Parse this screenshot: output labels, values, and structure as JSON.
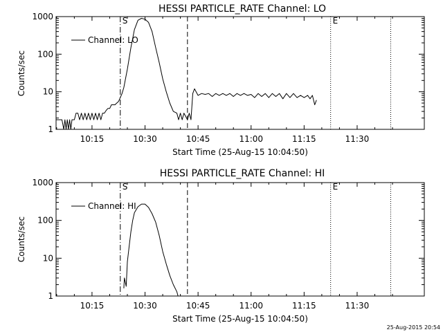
{
  "footer": {
    "timestamp": "25-Aug-2015 20:54"
  },
  "chart_data": [
    {
      "type": "line",
      "title": "HESSI PARTICLE_RATE Channel: LO",
      "xlabel": "Start Time (25-Aug-15 10:04:50)",
      "ylabel": "Counts/sec",
      "y_scale": "log",
      "ylim": [
        1,
        1000
      ],
      "xlim": [
        "10:04:50",
        "11:49:00"
      ],
      "x_ticks": [
        "10:15",
        "10:30",
        "10:45",
        "11:00",
        "11:15",
        "11:30"
      ],
      "y_ticks": [
        "1",
        "10",
        "100",
        "1000"
      ],
      "legend": {
        "position": "top-left",
        "entries": [
          "Channel: LO"
        ]
      },
      "markers": [
        {
          "label": "S",
          "time": "10:23:00",
          "style": "dash-dot"
        },
        {
          "label": "",
          "time": "10:42:00",
          "style": "dashed"
        },
        {
          "label": "E",
          "time": "11:22:30",
          "style": "dotted"
        },
        {
          "label": "",
          "time": "11:39:30",
          "style": "dotted"
        }
      ],
      "series": [
        {
          "name": "Channel: LO",
          "x": [
            "10:04:50",
            "10:06:30",
            "10:07:00",
            "10:07:20",
            "10:07:40",
            "10:08:00",
            "10:08:20",
            "10:08:40",
            "10:09:00",
            "10:09:20",
            "10:09:40",
            "10:10:00",
            "10:10:30",
            "10:11:00",
            "10:11:30",
            "10:12:00",
            "10:12:30",
            "10:13:00",
            "10:13:30",
            "10:14:00",
            "10:14:30",
            "10:15:00",
            "10:15:30",
            "10:16:00",
            "10:16:30",
            "10:17:00",
            "10:17:30",
            "10:18:00",
            "10:18:30",
            "10:19:00",
            "10:19:30",
            "10:20:00",
            "10:20:30",
            "10:21:00",
            "10:21:30",
            "10:22:00",
            "10:22:30",
            "10:23:00",
            "10:23:30",
            "10:24:00",
            "10:25:00",
            "10:26:00",
            "10:27:00",
            "10:28:00",
            "10:29:00",
            "10:30:00",
            "10:31:00",
            "10:32:00",
            "10:33:00",
            "10:34:00",
            "10:35:00",
            "10:36:00",
            "10:37:00",
            "10:38:00",
            "10:39:00",
            "10:39:30",
            "10:40:00",
            "10:40:30",
            "10:41:00",
            "10:41:30",
            "10:42:00",
            "10:42:30",
            "10:43:00",
            "10:43:30",
            "10:44:00",
            "10:45:00",
            "10:46:00",
            "10:47:00",
            "10:48:00",
            "10:49:00",
            "10:50:00",
            "10:51:00",
            "10:52:00",
            "10:53:00",
            "10:54:00",
            "10:55:00",
            "10:56:00",
            "10:57:00",
            "10:58:00",
            "10:59:00",
            "11:00:00",
            "11:01:00",
            "11:02:00",
            "11:03:00",
            "11:04:00",
            "11:05:00",
            "11:06:00",
            "11:07:00",
            "11:08:00",
            "11:09:00",
            "11:10:00",
            "11:11:00",
            "11:12:00",
            "11:13:00",
            "11:14:00",
            "11:15:00",
            "11:16:00",
            "11:16:40",
            "11:17:20",
            "11:18:00",
            "11:18:30"
          ],
          "y": [
            1.8,
            1.8,
            1,
            1.8,
            1,
            1.8,
            1,
            1.8,
            1,
            1.8,
            1.8,
            1.8,
            2.7,
            2.7,
            1.8,
            2.7,
            1.8,
            2.7,
            1.8,
            2.7,
            1.8,
            2.7,
            1.8,
            2.7,
            1.8,
            2.7,
            1.8,
            2.7,
            2.7,
            3.2,
            3.6,
            3.6,
            4.5,
            4.5,
            4.5,
            5,
            5.5,
            7,
            9,
            13,
            40,
            150,
            450,
            800,
            900,
            850,
            700,
            400,
            150,
            60,
            22,
            10,
            5,
            3,
            2.7,
            1.8,
            2.7,
            1.8,
            2.7,
            2.2,
            1.8,
            2.7,
            1.8,
            9,
            12,
            8,
            9,
            8.5,
            9,
            7.5,
            9,
            8,
            9,
            8,
            9,
            7.5,
            9,
            8,
            9,
            8,
            8.5,
            7,
            9,
            7.5,
            9,
            7,
            9,
            7.5,
            9,
            6.5,
            9,
            7,
            9,
            7,
            8,
            7,
            8,
            6.5,
            8,
            4.5,
            6
          ],
          "y_values_are_estimates": true
        }
      ]
    },
    {
      "type": "line",
      "title": "HESSI PARTICLE_RATE Channel: HI",
      "xlabel": "Start Time (25-Aug-15 10:04:50)",
      "ylabel": "Counts/sec",
      "y_scale": "log",
      "ylim": [
        1,
        1000
      ],
      "xlim": [
        "10:04:50",
        "11:49:00"
      ],
      "x_ticks": [
        "10:15",
        "10:30",
        "10:45",
        "11:00",
        "11:15",
        "11:30"
      ],
      "y_ticks": [
        "1",
        "10",
        "100",
        "1000"
      ],
      "legend": {
        "position": "top-left",
        "entries": [
          "Channel: HI"
        ]
      },
      "markers": [
        {
          "label": "S",
          "time": "10:23:00",
          "style": "dash-dot"
        },
        {
          "label": "",
          "time": "10:42:00",
          "style": "dashed"
        },
        {
          "label": "E",
          "time": "11:22:30",
          "style": "dotted"
        },
        {
          "label": "",
          "time": "11:39:30",
          "style": "dotted"
        }
      ],
      "series": [
        {
          "name": "Channel: HI",
          "x": [
            "10:24:00",
            "10:24:10",
            "10:24:40",
            "10:25:00",
            "10:25:30",
            "10:26:00",
            "10:26:30",
            "10:27:00",
            "10:28:00",
            "10:29:00",
            "10:30:00",
            "10:31:00",
            "10:32:00",
            "10:33:00",
            "10:34:00",
            "10:35:00",
            "10:36:00",
            "10:37:00",
            "10:38:00",
            "10:39:00",
            "10:39:20"
          ],
          "y": [
            1.6,
            3,
            1.8,
            8,
            20,
            50,
            100,
            160,
            230,
            270,
            270,
            220,
            150,
            90,
            40,
            15,
            7,
            3.5,
            2,
            1.3,
            1
          ],
          "y_values_are_estimates": true
        }
      ]
    }
  ]
}
